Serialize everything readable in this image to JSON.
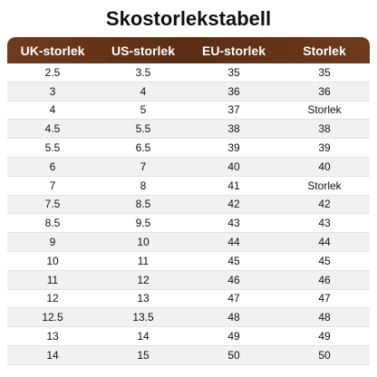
{
  "title": "Skostorlekstabell",
  "table": {
    "header": [
      "UK-storlek",
      "US-storlek",
      "EU-storlek",
      "Storlek"
    ],
    "rows": [
      [
        "2.5",
        "3.5",
        "35",
        "35"
      ],
      [
        "3",
        "4",
        "36",
        "36"
      ],
      [
        "4",
        "5",
        "37",
        "Storlek"
      ],
      [
        "4.5",
        "5.5",
        "38",
        "38"
      ],
      [
        "5.5",
        "6.5",
        "39",
        "39"
      ],
      [
        "6",
        "7",
        "40",
        "40"
      ],
      [
        "7",
        "8",
        "41",
        "Storlek"
      ],
      [
        "7.5",
        "8.5",
        "42",
        "42"
      ],
      [
        "8.5",
        "9.5",
        "43",
        "43"
      ],
      [
        "9",
        "10",
        "44",
        "44"
      ],
      [
        "10",
        "11",
        "45",
        "45"
      ],
      [
        "11",
        "12",
        "46",
        "46"
      ],
      [
        "12",
        "13",
        "47",
        "47"
      ],
      [
        "12.5",
        "13.5",
        "48",
        "48"
      ],
      [
        "13",
        "14",
        "49",
        "49"
      ],
      [
        "14",
        "15",
        "50",
        "50"
      ]
    ]
  }
}
